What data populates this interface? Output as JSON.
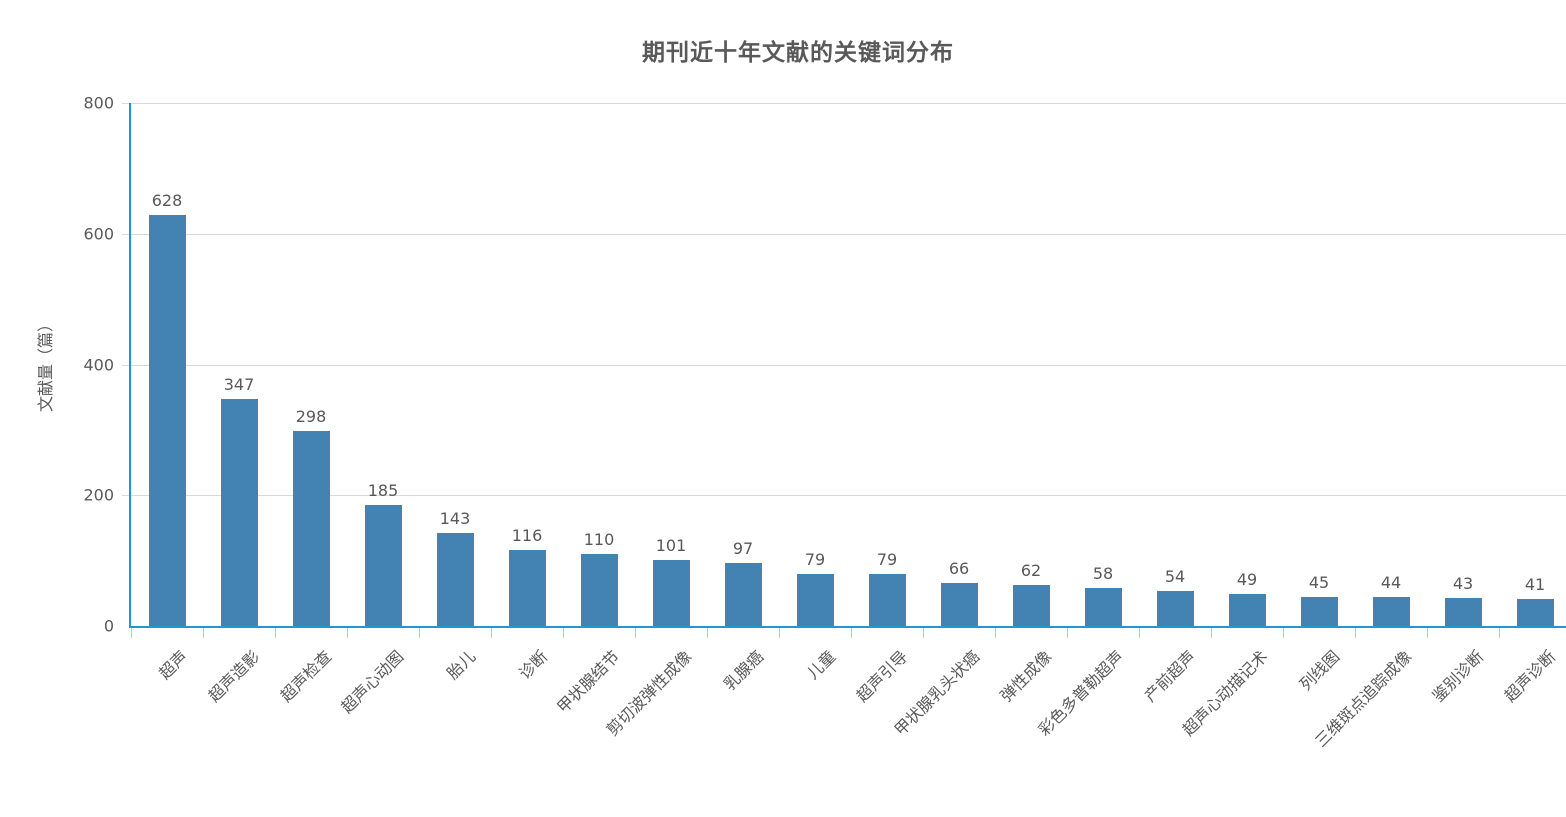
{
  "chart_data": {
    "type": "bar",
    "title": "期刊近十年文献的关键词分布",
    "xlabel": "",
    "ylabel": "文献量（篇）",
    "categories": [
      "超声",
      "超声造影",
      "超声检查",
      "超声心动图",
      "胎儿",
      "诊断",
      "甲状腺结节",
      "剪切波弹性成像",
      "乳腺癌",
      "儿童",
      "超声引导",
      "甲状腺乳头状癌",
      "弹性成像",
      "彩色多普勒超声",
      "产前超声",
      "超声心动描记术",
      "列线图",
      "三维斑点追踪成像",
      "鉴别诊断",
      "超声诊断"
    ],
    "values": [
      628,
      347,
      298,
      185,
      143,
      116,
      110,
      101,
      97,
      79,
      79,
      66,
      62,
      58,
      54,
      49,
      45,
      44,
      43,
      41
    ],
    "ylim": [
      0,
      800
    ],
    "yticks": [
      0,
      200,
      400,
      600,
      800
    ],
    "grid": true,
    "legend": false,
    "bar_labels_shown": true,
    "x_label_rotation_deg": 45
  },
  "style": {
    "bar_color": "#4383b4",
    "axis_line_color": "#2097ce",
    "gridline_color": "#d9d9d9",
    "x_tick_color": "#afcde7",
    "y_tick_color": "#d9d9d9",
    "text_color": "#595959",
    "background_color": "#ffffff"
  }
}
